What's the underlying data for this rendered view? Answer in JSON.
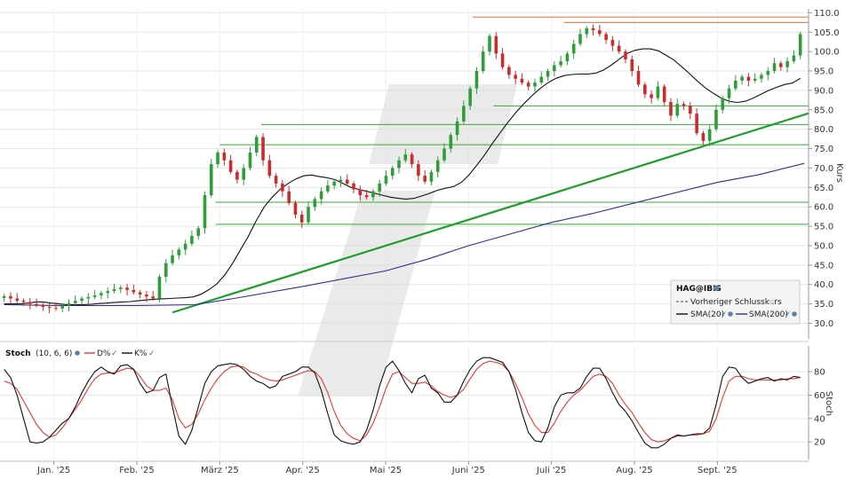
{
  "chart_data": [
    {
      "name": "price",
      "type": "candlestick",
      "instrument": "HAG@IBIS",
      "ylabel": "Kurs",
      "ylim": [
        26.0,
        111.0
      ],
      "y_ticks": [
        30.0,
        35.0,
        40.0,
        45.0,
        50.0,
        55.0,
        60.0,
        65.0,
        70.0,
        75.0,
        80.0,
        85.0,
        90.0,
        95.0,
        100.0,
        105.0,
        110.0
      ],
      "x_labels": [
        "Jan. '25",
        "Feb. '25",
        "März '25",
        "Apr. '25",
        "Mai '25",
        "Juni '25",
        "Juli '25",
        "Aug. '25",
        "Sept. '25"
      ],
      "x_label_positions": [
        1.0,
        2.0,
        3.0,
        4.0,
        5.0,
        6.0,
        7.0,
        8.0,
        9.0
      ],
      "x_range": [
        0.35,
        10.1
      ],
      "legend": {
        "title": "HAG@IBIS",
        "items": [
          "Vorheriger Schlusskurs",
          "SMA(20)",
          "SMA(200)"
        ]
      },
      "closes": [
        37.0,
        36.4,
        35.8,
        35.5,
        35.0,
        34.7,
        34.2,
        34.0,
        33.8,
        34.5,
        35.2,
        35.8,
        36.4,
        36.8,
        37.2,
        37.8,
        38.3,
        38.8,
        39.2,
        38.6,
        38.0,
        37.4,
        36.9,
        36.4,
        42.0,
        45.5,
        47.5,
        49.0,
        50.5,
        52.5,
        54.5,
        63.0,
        71.0,
        74.0,
        72.0,
        69.0,
        67.0,
        70.0,
        74.0,
        78.0,
        72.0,
        68.0,
        66.0,
        64.0,
        61.0,
        58.0,
        56.0,
        60.0,
        62.0,
        64.0,
        65.5,
        66.5,
        67.0,
        66.0,
        64.5,
        63.0,
        62.5,
        64.0,
        66.0,
        68.0,
        70.0,
        72.0,
        73.5,
        71.0,
        68.0,
        66.5,
        69.0,
        72.0,
        75.0,
        78.5,
        82.0,
        86.0,
        90.5,
        95.0,
        100.0,
        104.0,
        99.5,
        96.0,
        94.0,
        93.0,
        92.0,
        91.0,
        92.0,
        93.5,
        95.0,
        96.5,
        97.5,
        99.5,
        102.0,
        104.5,
        106.0,
        105.5,
        104.5,
        103.0,
        101.5,
        100.0,
        98.0,
        95.0,
        91.5,
        89.0,
        88.0,
        91.0,
        87.0,
        83.5,
        86.5,
        86.0,
        84.0,
        79.0,
        77.0,
        80.0,
        85.0,
        88.0,
        90.5,
        92.5,
        93.5,
        92.5,
        93.0,
        94.0,
        95.0,
        97.0,
        96.0,
        97.5,
        99.0,
        104.5
      ],
      "sma20": [
        35.0,
        35.0,
        35.0,
        35.2,
        35.5,
        35.5,
        35.2,
        35.0,
        34.8,
        34.8,
        34.8,
        34.9,
        35.1,
        35.2,
        35.4,
        35.5,
        35.6,
        35.8,
        36.0,
        36.2,
        36.3,
        36.4,
        36.5,
        36.6,
        36.8,
        37.5,
        38.7,
        40.2,
        42.5,
        45.5,
        49.0,
        52.5,
        56.5,
        60.0,
        62.5,
        64.5,
        66.0,
        67.2,
        68.0,
        68.2,
        67.8,
        67.5,
        67.0,
        66.0,
        65.0,
        64.5,
        64.0,
        63.5,
        63.0,
        62.5,
        62.2,
        62.0,
        62.2,
        62.8,
        63.5,
        64.3,
        64.8,
        65.2,
        66.3,
        68.3,
        70.8,
        73.5,
        76.5,
        79.3,
        82.0,
        84.5,
        86.7,
        88.7,
        90.5,
        92.0,
        93.1,
        93.8,
        94.1,
        94.2,
        94.2,
        94.4,
        95.2,
        96.5,
        98.0,
        99.5,
        100.3,
        100.7,
        100.7,
        100.2,
        99.0,
        97.8,
        96.0,
        94.2,
        92.3,
        90.6,
        89.2,
        88.0,
        87.2,
        86.9,
        87.2,
        88.0,
        89.0,
        90.0,
        90.8,
        91.5,
        91.9,
        93.1
      ]
    },
    {
      "name": "stoch",
      "type": "line",
      "title": "Stoch",
      "params": "(10, 6, 6)",
      "ylabel": "Stoch",
      "ylim": [
        5.0,
        102.0
      ],
      "y_ticks": [
        20.0,
        40.0,
        60.0,
        80.0
      ],
      "legend_items": [
        "D%",
        "K%"
      ],
      "series": [
        {
          "name": "K%",
          "color": "#111111",
          "values": [
            82.0,
            75.0,
            60.0,
            40.0,
            20.0,
            19.0,
            20.0,
            24.0,
            30.0,
            36.0,
            40.0,
            50.0,
            62.0,
            72.0,
            80.0,
            84.0,
            80.0,
            78.0,
            85.0,
            86.0,
            82.0,
            70.0,
            62.0,
            64.0,
            75.0,
            78.0,
            50.0,
            25.0,
            18.0,
            30.0,
            50.0,
            70.0,
            80.0,
            85.0,
            86.0,
            87.0,
            86.0,
            82.0,
            76.0,
            72.0,
            70.0,
            66.0,
            68.0,
            76.0,
            78.0,
            80.0,
            84.0,
            84.0,
            79.0,
            64.0,
            44.0,
            26.0,
            21.0,
            19.0,
            18.0,
            20.0,
            30.0,
            47.0,
            68.0,
            84.0,
            89.0,
            81.0,
            70.0,
            62.0,
            74.0,
            77.0,
            66.0,
            62.0,
            54.0,
            54.0,
            60.0,
            72.0,
            82.0,
            89.0,
            92.0,
            92.0,
            90.0,
            88.0,
            80.0,
            65.0,
            45.0,
            28.0,
            21.0,
            20.0,
            32.0,
            50.0,
            60.0,
            62.0,
            62.0,
            66.0,
            76.0,
            83.0,
            83.0,
            74.0,
            62.0,
            52.0,
            46.0,
            38.0,
            28.0,
            19.0,
            15.0,
            15.0,
            18.0,
            23.0,
            26.0,
            25.0,
            26.0,
            27.0,
            27.0,
            32.0,
            52.0,
            76.0,
            84.0,
            83.0,
            75.0,
            70.0,
            72.0,
            74.0,
            75.0,
            72.0,
            74.0,
            73.0,
            76.0,
            75.0
          ]
        },
        {
          "name": "D%",
          "color": "#e53935",
          "values": [
            72.0,
            70.0,
            65.0,
            55.0,
            45.0,
            35.0,
            28.0,
            24.0,
            26.0,
            32.0,
            40.0,
            48.0,
            56.0,
            66.0,
            74.0,
            78.0,
            79.0,
            79.0,
            81.0,
            83.0,
            82.0,
            76.0,
            68.0,
            64.0,
            64.0,
            66.0,
            56.0,
            40.0,
            32.0,
            35.0,
            44.0,
            56.0,
            66.0,
            74.0,
            80.0,
            84.0,
            85.0,
            84.0,
            80.0,
            78.0,
            75.0,
            73.0,
            72.0,
            73.0,
            75.0,
            77.0,
            79.0,
            81.0,
            80.0,
            74.0,
            62.0,
            46.0,
            34.0,
            27.0,
            23.0,
            21.0,
            26.0,
            36.0,
            50.0,
            66.0,
            78.0,
            80.0,
            75.0,
            70.0,
            70.0,
            71.0,
            68.0,
            63.0,
            60.0,
            58.0,
            60.0,
            65.0,
            74.0,
            82.0,
            87.0,
            89.0,
            88.0,
            86.0,
            80.0,
            70.0,
            58.0,
            44.0,
            34.0,
            28.0,
            28.0,
            36.0,
            46.0,
            54.0,
            60.0,
            64.0,
            70.0,
            76.0,
            78.0,
            76.0,
            70.0,
            60.0,
            52.0,
            45.0,
            36.0,
            28.0,
            22.0,
            20.0,
            21.0,
            23.0,
            25.0,
            25.0,
            26.0,
            26.0,
            27.0,
            29.0,
            40.0,
            58.0,
            72.0,
            76.0,
            76.0,
            74.0,
            73.0,
            73.0,
            73.0,
            73.0,
            73.0,
            74.0,
            74.0,
            75.0
          ]
        }
      ]
    }
  ]
}
